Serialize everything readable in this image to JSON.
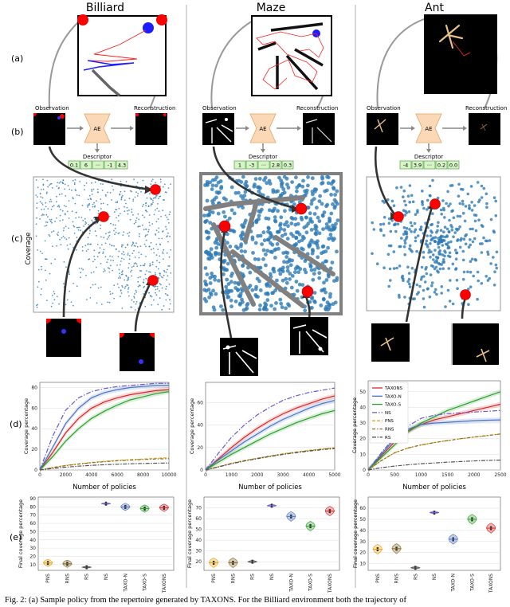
{
  "columns": [
    {
      "title": "Billiard"
    },
    {
      "title": "Maze"
    },
    {
      "title": "Ant"
    }
  ],
  "row_labels": [
    "(a)",
    "(b)",
    "(c)",
    "(d)",
    "(e)"
  ],
  "coverage_label": "Coverage",
  "pipeline": {
    "observation": "Observation",
    "reconstruction": "Reconstruction",
    "ae": "AE",
    "descriptor_label": "Descriptor"
  },
  "descriptors": [
    [
      "0.1",
      "6",
      "···",
      "-1",
      "4.3"
    ],
    [
      "1",
      "-3",
      "···",
      "2.8",
      "0.3"
    ],
    [
      "-4",
      "3.9",
      "···",
      "0.2",
      "0.0"
    ]
  ],
  "caption": "Fig. 2: (a) Sample policy from the repertoire generated by TAXONS. For the Billiard environment both the trajectory of",
  "colors": {
    "TAXONS": "#d62728",
    "TAXO-N": "#4a72c4",
    "TAXO-S": "#2ca02c",
    "NS": "#6a5acd",
    "PNS": "#e8a317",
    "RNS": "#8b6d2b",
    "RS": "#555555",
    "scatter": "#2d7bb6",
    "wall": "#808080"
  },
  "chart_data": [
    {
      "type": "line",
      "env": "Billiard",
      "xlabel": "Number of policies",
      "ylabel": "Coverage percentage",
      "xlim": [
        0,
        10000
      ],
      "ylim": [
        0,
        85
      ],
      "xticks": [
        0,
        2000,
        4000,
        6000,
        8000,
        10000
      ],
      "yticks": [
        0,
        20,
        40,
        60,
        80
      ],
      "x": [
        0,
        1000,
        2000,
        3000,
        4000,
        5000,
        6000,
        7000,
        8000,
        9000,
        10000
      ],
      "series": [
        {
          "name": "TAXONS",
          "values": [
            0,
            17,
            36,
            50,
            60,
            66,
            70,
            73,
            75,
            77,
            78
          ]
        },
        {
          "name": "TAXO-N",
          "values": [
            0,
            22,
            45,
            60,
            70,
            75,
            78,
            80,
            81,
            82,
            82
          ]
        },
        {
          "name": "TAXO-S",
          "values": [
            0,
            13,
            28,
            40,
            50,
            57,
            63,
            68,
            71,
            74,
            76
          ]
        },
        {
          "name": "NS",
          "values": [
            0,
            33,
            58,
            70,
            76,
            79,
            81,
            82,
            83,
            84,
            84
          ]
        },
        {
          "name": "PNS",
          "values": [
            0,
            2.5,
            4.5,
            6,
            7.3,
            8.4,
            9.3,
            10,
            10.7,
            11.3,
            12
          ]
        },
        {
          "name": "RNS",
          "values": [
            0,
            2.3,
            4.2,
            5.7,
            7,
            8,
            8.9,
            9.6,
            10.2,
            10.7,
            11
          ]
        },
        {
          "name": "RS",
          "values": [
            0,
            1.5,
            2.7,
            3.7,
            4.5,
            5.1,
            5.6,
            6,
            6.3,
            6.6,
            6.8
          ]
        }
      ]
    },
    {
      "type": "line",
      "env": "Maze",
      "xlabel": "Number of policies",
      "ylabel": "Coverage percentage",
      "xlim": [
        0,
        5000
      ],
      "ylim": [
        0,
        78
      ],
      "xticks": [
        0,
        1000,
        2000,
        3000,
        4000,
        5000
      ],
      "yticks": [
        0,
        20,
        40,
        60
      ],
      "x": [
        0,
        500,
        1000,
        1500,
        2000,
        2500,
        3000,
        3500,
        4000,
        4500,
        5000
      ],
      "series": [
        {
          "name": "TAXONS",
          "values": [
            0,
            10,
            20,
            29,
            37,
            44,
            50,
            55,
            59,
            63,
            66
          ]
        },
        {
          "name": "TAXO-N",
          "values": [
            0,
            9,
            17,
            25,
            32,
            39,
            45,
            50,
            55,
            59,
            62
          ]
        },
        {
          "name": "TAXO-S",
          "values": [
            0,
            7,
            14,
            20,
            26,
            32,
            37,
            42,
            46,
            50,
            53
          ]
        },
        {
          "name": "NS",
          "values": [
            0,
            15,
            29,
            40,
            49,
            56,
            62,
            66,
            69,
            71,
            73
          ]
        },
        {
          "name": "PNS",
          "values": [
            0,
            3,
            6,
            8.5,
            10.5,
            12.5,
            14.5,
            16,
            17.5,
            18.7,
            20
          ]
        },
        {
          "name": "RNS",
          "values": [
            0,
            2.8,
            5.5,
            8,
            10,
            12,
            13.8,
            15.3,
            16.7,
            18,
            19
          ]
        },
        {
          "name": "RS",
          "values": [
            0,
            2.8,
            5.6,
            8,
            10.2,
            12.2,
            14,
            15.6,
            17,
            18.3,
            19.5
          ]
        }
      ]
    },
    {
      "type": "line",
      "env": "Ant",
      "xlabel": "Number of policies",
      "ylabel": "Coverage percentage",
      "xlim": [
        0,
        2500
      ],
      "ylim": [
        0,
        57
      ],
      "xticks": [
        0,
        500,
        1000,
        1500,
        2000,
        2500
      ],
      "yticks": [
        0,
        10,
        20,
        30,
        40,
        50
      ],
      "legend": [
        "TAXONS",
        "TAXO-N",
        "TAXO-S",
        "NS",
        "PNS",
        "RNS",
        "RS"
      ],
      "legend_position": "top-left",
      "x": [
        0,
        250,
        500,
        750,
        1000,
        1250,
        1500,
        1750,
        2000,
        2250,
        2500
      ],
      "series": [
        {
          "name": "TAXONS",
          "values": [
            0,
            9,
            18,
            25,
            29,
            32,
            34,
            36,
            38,
            40,
            42
          ]
        },
        {
          "name": "TAXO-N",
          "values": [
            0,
            10,
            20,
            26,
            29,
            30,
            30.5,
            31,
            31.5,
            31.8,
            32
          ]
        },
        {
          "name": "TAXO-S",
          "values": [
            0,
            8,
            16,
            24,
            30,
            34,
            38,
            41,
            44,
            47,
            50
          ]
        },
        {
          "name": "NS",
          "values": [
            0,
            11,
            21,
            28,
            33,
            35,
            36,
            36.5,
            37,
            37.5,
            38
          ]
        },
        {
          "name": "PNS",
          "values": [
            0,
            6,
            11,
            14,
            16,
            17.5,
            18.8,
            20,
            21,
            22,
            23
          ]
        },
        {
          "name": "RNS",
          "values": [
            0,
            6,
            11,
            14,
            16,
            17.5,
            18.8,
            20,
            21,
            22,
            23
          ]
        },
        {
          "name": "RS",
          "values": [
            0,
            1.5,
            2.5,
            3.3,
            4,
            4.5,
            5,
            5.4,
            5.8,
            6.1,
            6.3
          ]
        }
      ]
    },
    {
      "type": "violin",
      "env": "Billiard",
      "ylabel": "Final coverage percentage",
      "ylim": [
        3,
        92
      ],
      "yticks": [
        10,
        20,
        30,
        40,
        50,
        60,
        70,
        80,
        90
      ],
      "categories": [
        "PNS",
        "RNS",
        "RS",
        "NS",
        "TAXO-N",
        "TAXO-S",
        "TAXONS"
      ],
      "values": [
        12,
        11,
        6.8,
        84,
        80,
        78,
        79
      ]
    },
    {
      "type": "violin",
      "env": "Maze",
      "ylabel": "Final coverage percentage",
      "ylim": [
        12,
        80
      ],
      "yticks": [
        20,
        30,
        40,
        50,
        60,
        70
      ],
      "categories": [
        "PNS",
        "RNS",
        "RS",
        "NS",
        "TAXO-N",
        "TAXO-S",
        "TAXONS"
      ],
      "values": [
        19,
        19,
        20,
        72,
        62,
        53,
        67
      ]
    },
    {
      "type": "violin",
      "env": "Ant",
      "ylabel": "Final coverage percentage",
      "ylim": [
        4,
        70
      ],
      "yticks": [
        10,
        20,
        30,
        40,
        50,
        60
      ],
      "categories": [
        "PNS",
        "RNS",
        "RS",
        "NS",
        "TAXO-N",
        "TAXO-S",
        "TAXONS"
      ],
      "values": [
        23,
        23.5,
        6.3,
        56,
        32,
        50,
        42
      ]
    }
  ]
}
